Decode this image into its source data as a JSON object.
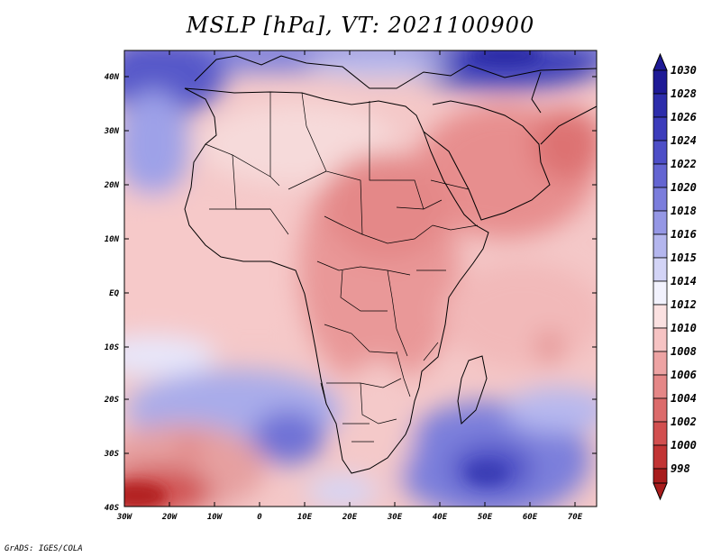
{
  "title": "MSLP [hPa], VT: 2021100900",
  "credit": "GrADS: IGES/COLA",
  "map": {
    "lat_labels": [
      "40N",
      "30N",
      "20N",
      "10N",
      "EQ",
      "10S",
      "20S",
      "30S",
      "40S"
    ],
    "lon_labels": [
      "30W",
      "20W",
      "10W",
      "0",
      "10E",
      "20E",
      "30E",
      "40E",
      "50E",
      "60E",
      "70E"
    ],
    "lat_range": [
      -40,
      45
    ],
    "lon_range": [
      -30,
      75
    ]
  },
  "colorbar": {
    "levels": [
      "1030",
      "1028",
      "1026",
      "1024",
      "1022",
      "1020",
      "1018",
      "1016",
      "1015",
      "1014",
      "1012",
      "1010",
      "1008",
      "1006",
      "1004",
      "1002",
      "1000",
      "998"
    ],
    "colors": [
      "#1e1a96",
      "#2d2dab",
      "#3c3cbb",
      "#4d4ec7",
      "#6465d2",
      "#7b7ddc",
      "#9597e5",
      "#b4b6ee",
      "#d3d4f6",
      "#f2f2fd",
      "#fbe1e1",
      "#f6c3c3",
      "#eda3a3",
      "#e58787",
      "#dc6b6b",
      "#d24f4f",
      "#c23434",
      "#a81c1c"
    ]
  }
}
